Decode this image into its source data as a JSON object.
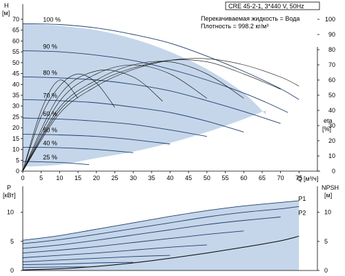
{
  "chart_data": [
    {
      "type": "line",
      "title": "CRE 45-2-1, 3*440 V, 50Hz",
      "info": [
        "Перекачиваемая жидкость = Вода",
        "Плотность = 998.2 кг/м³"
      ],
      "ylabel": "H",
      "yunit": "[м]",
      "ylabel_right": "eta",
      "yunit_right": "[%]",
      "xlabel": "Q",
      "xunit": "[м³/ч]",
      "xlim": [
        0,
        80
      ],
      "ylim": [
        0,
        70
      ],
      "ylim_right": [
        0,
        100
      ],
      "x_ticks": [
        0,
        5,
        10,
        15,
        20,
        25,
        30,
        35,
        40,
        45,
        50,
        55,
        60,
        65,
        70,
        75
      ],
      "y_ticks": [
        0,
        5,
        10,
        15,
        20,
        25,
        30,
        35,
        40,
        45,
        50,
        55,
        60,
        65,
        70
      ],
      "y_ticks_right": [
        0,
        10,
        20,
        30,
        40,
        50,
        60,
        70,
        80,
        90,
        100
      ],
      "grid": false,
      "envelope": {
        "x": [
          0,
          10,
          20,
          30,
          40,
          50,
          60,
          66
        ],
        "y_top": [
          68,
          67,
          65,
          61,
          55,
          47,
          36,
          26
        ],
        "y_bottom": [
          2,
          3,
          6,
          9,
          13,
          18,
          24,
          28
        ]
      },
      "head_curves": [
        {
          "name": "100 %",
          "x": [
            0,
            10,
            20,
            30,
            40,
            50,
            60,
            70,
            75
          ],
          "y": [
            68,
            67.6,
            66,
            63,
            59,
            53,
            46,
            38,
            33
          ]
        },
        {
          "name": "90 %",
          "x": [
            0,
            10,
            20,
            30,
            40,
            50,
            60,
            67,
            72
          ],
          "y": [
            55.5,
            55,
            53.5,
            51,
            47,
            42,
            36,
            31,
            27
          ]
        },
        {
          "name": "80 %",
          "x": [
            0,
            10,
            20,
            30,
            40,
            50,
            60,
            70
          ],
          "y": [
            43.5,
            43,
            42,
            40,
            37,
            32.5,
            27.5,
            22
          ]
        },
        {
          "name": "70 %",
          "x": [
            0,
            10,
            20,
            30,
            40,
            50,
            60
          ],
          "y": [
            33,
            32.5,
            31.5,
            29.5,
            27,
            23,
            18
          ]
        },
        {
          "name": "60 %",
          "x": [
            0,
            10,
            20,
            30,
            40,
            50
          ],
          "y": [
            24.5,
            24,
            23,
            21.5,
            19,
            16
          ]
        },
        {
          "name": "50 %",
          "x": [
            0,
            10,
            20,
            30,
            40
          ],
          "y": [
            17,
            16.7,
            16,
            14.5,
            12.5
          ]
        },
        {
          "name": "40 %",
          "x": [
            0,
            10,
            20,
            30
          ],
          "y": [
            11,
            10.8,
            10,
            8.5
          ]
        },
        {
          "name": "25 %",
          "x": [
            0,
            10,
            18
          ],
          "y": [
            4.5,
            4,
            3
          ]
        }
      ],
      "eta_curves": [
        {
          "x": [
            0,
            5,
            10,
            15
          ],
          "y": [
            0,
            40,
            60,
            48
          ]
        },
        {
          "x": [
            0,
            5,
            10,
            15,
            20,
            25
          ],
          "y": [
            0,
            36,
            56,
            64,
            58,
            42
          ]
        },
        {
          "x": [
            0,
            10,
            20,
            30,
            38
          ],
          "y": [
            0,
            50,
            66,
            62,
            46
          ]
        },
        {
          "x": [
            0,
            10,
            20,
            30,
            40,
            50
          ],
          "y": [
            0,
            46,
            64,
            70,
            64,
            48
          ]
        },
        {
          "x": [
            0,
            10,
            20,
            30,
            40,
            50,
            60
          ],
          "y": [
            0,
            42,
            60,
            70,
            72,
            64,
            48
          ]
        },
        {
          "x": [
            0,
            10,
            20,
            30,
            40,
            50,
            60,
            70
          ],
          "y": [
            0,
            40,
            58,
            68,
            73,
            72,
            64,
            54
          ]
        },
        {
          "x": [
            0,
            10,
            20,
            30,
            40,
            50,
            60,
            70,
            75
          ],
          "y": [
            0,
            38,
            56,
            67,
            73,
            74,
            70,
            62,
            56
          ]
        }
      ]
    },
    {
      "type": "line",
      "ylabel": "P",
      "yunit": "[кВт]",
      "ylabel_right": "NPSH",
      "yunit_right": "[м]",
      "xlim": [
        0,
        80
      ],
      "ylim": [
        0,
        14
      ],
      "ylim_right": [
        0,
        14
      ],
      "y_ticks": [
        0,
        5,
        10
      ],
      "y_ticks_right": [
        0,
        5,
        10
      ],
      "grid": false,
      "series": [
        {
          "name": "P1",
          "x": [
            0,
            10,
            20,
            30,
            40,
            50,
            60,
            70,
            75
          ],
          "y": [
            5.2,
            6.0,
            7.1,
            8.2,
            9.3,
            10.3,
            11.1,
            11.7,
            12.0
          ]
        },
        {
          "name": "P2",
          "x": [
            0,
            10,
            20,
            30,
            40,
            50,
            60,
            70,
            75
          ],
          "y": [
            4.6,
            5.3,
            6.2,
            7.2,
            8.2,
            9.2,
            10.0,
            10.6,
            11.0
          ]
        },
        {
          "name": "",
          "x": [
            0,
            10,
            20,
            30,
            40,
            50,
            60,
            70
          ],
          "y": [
            3.8,
            4.4,
            5.2,
            6.1,
            7.0,
            7.9,
            8.6,
            9.2
          ]
        },
        {
          "name": "",
          "x": [
            0,
            10,
            20,
            30,
            40,
            50,
            60
          ],
          "y": [
            3.0,
            3.5,
            4.1,
            4.8,
            5.5,
            6.2,
            6.8
          ]
        },
        {
          "name": "",
          "x": [
            0,
            10,
            20,
            30,
            40,
            50
          ],
          "y": [
            2.2,
            2.6,
            3.0,
            3.5,
            4.0,
            4.4
          ]
        },
        {
          "name": "",
          "x": [
            0,
            10,
            20,
            30,
            40
          ],
          "y": [
            1.5,
            1.8,
            2.1,
            2.4,
            2.6
          ]
        },
        {
          "name": "",
          "x": [
            0,
            10,
            20,
            30
          ],
          "y": [
            1.0,
            1.1,
            1.3,
            1.4
          ]
        },
        {
          "name": "",
          "x": [
            0,
            10,
            18
          ],
          "y": [
            0.5,
            0.6,
            0.6
          ]
        }
      ],
      "npsh_curve": {
        "x": [
          0,
          10,
          20,
          30,
          40,
          50,
          60,
          70,
          75
        ],
        "y": [
          0.1,
          0.3,
          0.7,
          1.3,
          2.1,
          3.0,
          4.0,
          5.1,
          5.9
        ]
      }
    }
  ],
  "colors": {
    "fill": "#c5d6ea",
    "curve": "#1f3d6b",
    "eta": "#000000",
    "axis": "#000000",
    "npsh": "#000000"
  }
}
